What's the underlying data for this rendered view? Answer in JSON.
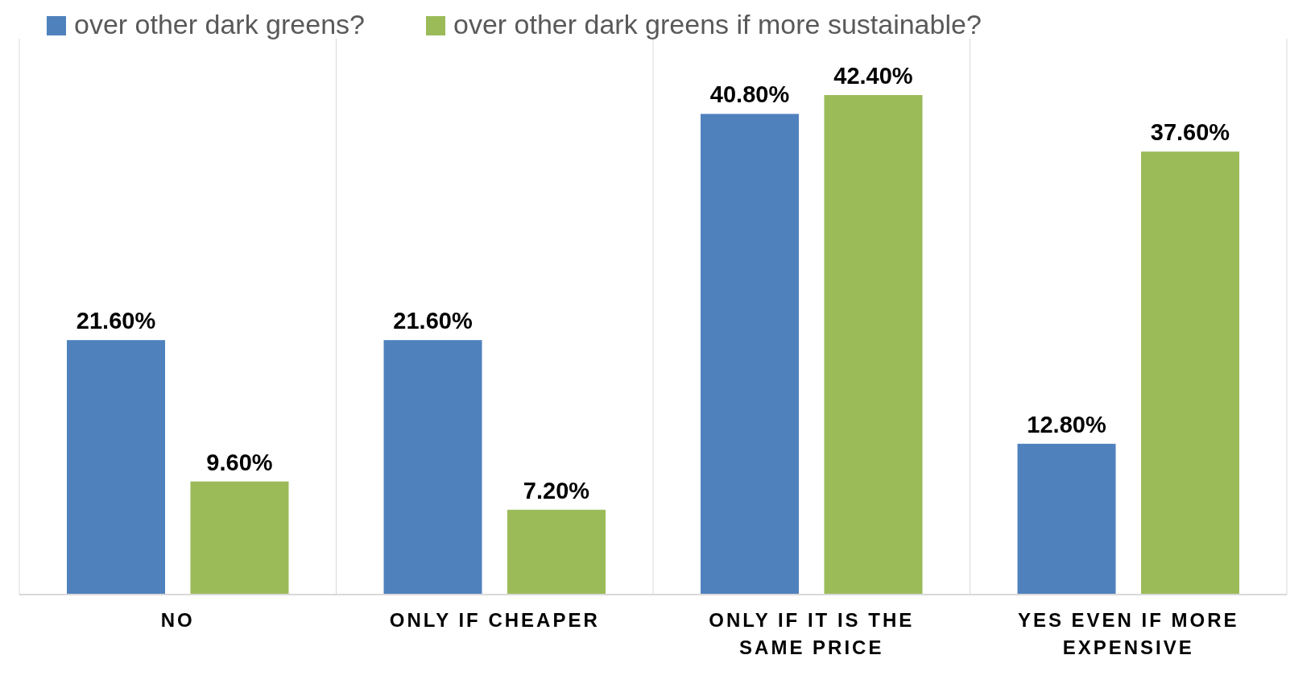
{
  "chart_data": {
    "type": "bar",
    "categories": [
      "NO",
      "ONLY IF CHEAPER",
      "ONLY IF IT IS THE SAME PRICE",
      "YES EVEN IF MORE EXPENSIVE"
    ],
    "series": [
      {
        "name": "over other dark greens?",
        "color": "#4f81bd",
        "values": [
          21.6,
          21.6,
          40.8,
          12.8
        ],
        "value_labels": [
          "21.60%",
          "21.60%",
          "40.80%",
          "12.80%"
        ]
      },
      {
        "name": "over other dark greens if more sustainable?",
        "color": "#9bbb59",
        "values": [
          9.6,
          7.2,
          42.4,
          37.6
        ],
        "value_labels": [
          "9.60%",
          "7.20%",
          "42.40%",
          "37.60%"
        ]
      }
    ],
    "tick_labels": "x",
    "grid": "x",
    "legend": "top"
  }
}
